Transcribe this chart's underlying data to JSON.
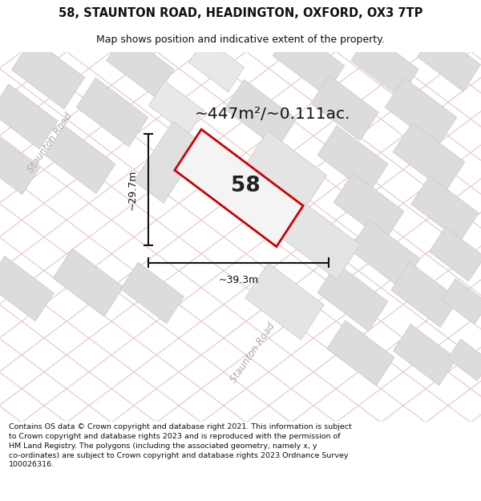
{
  "title_line1": "58, STAUNTON ROAD, HEADINGTON, OXFORD, OX3 7TP",
  "title_line2": "Map shows position and indicative extent of the property.",
  "area_label": "~447m²/~0.111ac.",
  "property_number": "58",
  "width_label": "~39.3m",
  "height_label": "~29.7m",
  "road_label_upper": "Staunton Road",
  "road_label_lower": "Staunton Road",
  "footer": "Contains OS data © Crown copyright and database right 2021. This information is subject to Crown copyright and database rights 2023 and is reproduced with the permission of HM Land Registry. The polygons (including the associated geometry, namely x, y co-ordinates) are subject to Crown copyright and database rights 2023 Ordnance Survey 100026316.",
  "map_bg": "#f5f4f4",
  "grid_line_color": "#e8c0c0",
  "building_color": "#dcdcdc",
  "building_edge": "#c8c8c8",
  "property_fill": "#f5f4f4",
  "property_edge": "#cc0000",
  "dim_line_color": "#111111",
  "road_text_color": "#aaaaaa",
  "title_color": "#111111",
  "footer_color": "#111111",
  "white": "#ffffff",
  "map_road_color": "#ebebeb"
}
